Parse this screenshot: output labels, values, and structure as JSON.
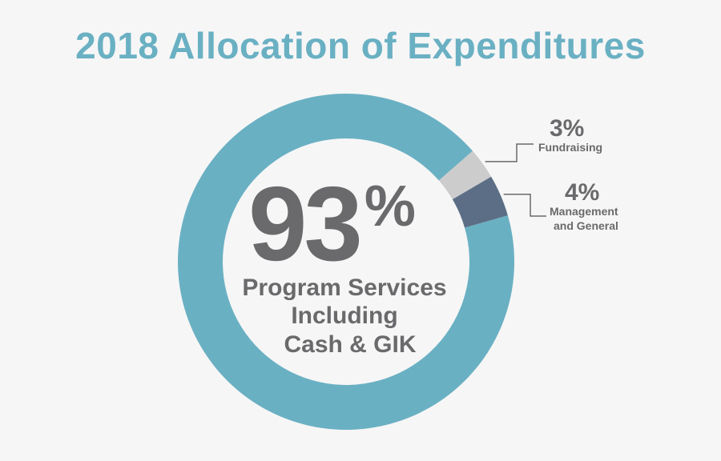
{
  "chart_data": {
    "type": "pie",
    "title": "2018 Allocation of Expenditures",
    "slices": [
      {
        "label": "Program Services Including Cash & GIK",
        "label_lines": [
          "Program Services",
          "Including",
          "Cash & GIK"
        ],
        "value": 93,
        "display": "93%",
        "number": "93",
        "unit": "%",
        "color": "#6ab0c3"
      },
      {
        "label": "Fundraising",
        "label_lines": [
          "Fundraising"
        ],
        "value": 3,
        "display": "3%",
        "color": "#cccccc"
      },
      {
        "label": "Management and General",
        "label_lines": [
          "Management",
          "and General"
        ],
        "value": 4,
        "display": "4%",
        "color": "#5c6e85"
      }
    ]
  },
  "colors": {
    "background": "#f6f6f6",
    "title": "#6ab0c3",
    "text": "#6a6a6c",
    "leader": "#6a6a6c"
  }
}
